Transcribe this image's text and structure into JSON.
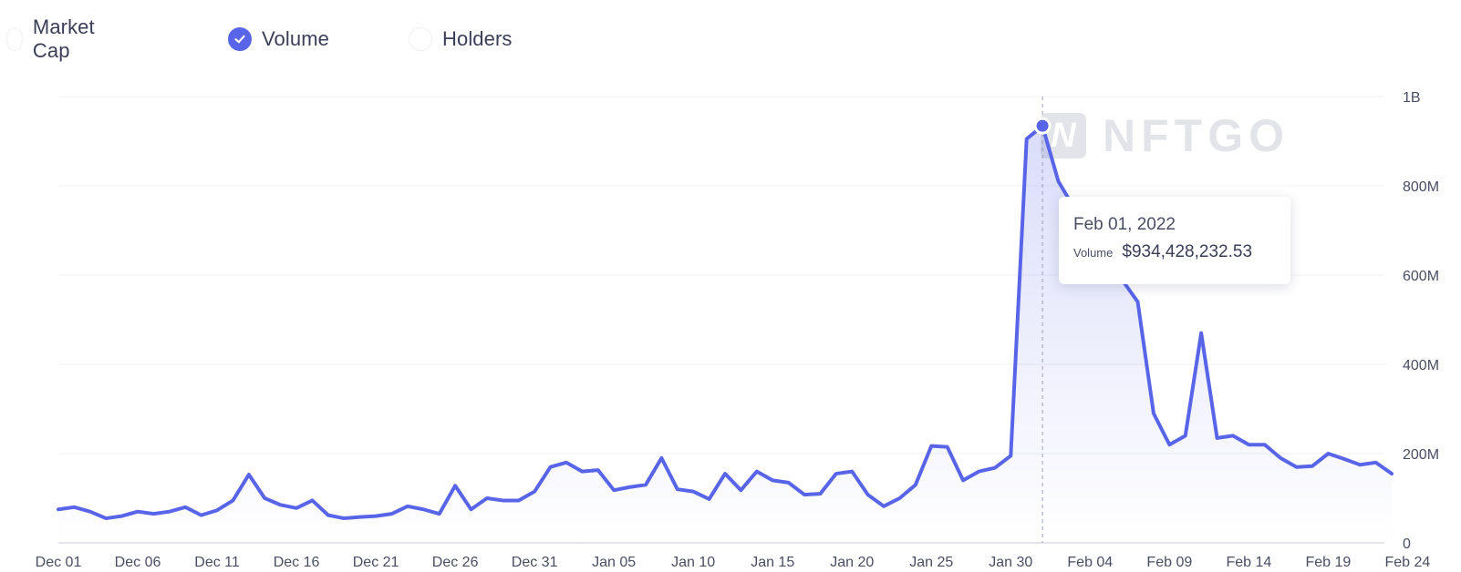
{
  "toggles": [
    {
      "label": "Market Cap",
      "checked": false
    },
    {
      "label": "Volume",
      "checked": true
    },
    {
      "label": "Holders",
      "checked": false
    }
  ],
  "watermark": {
    "mark": "N",
    "text": "NFTGO"
  },
  "tooltip": {
    "date": "Feb 01, 2022",
    "label": "Volume",
    "value": "$934,428,232.53"
  },
  "colors": {
    "line": "#5965e8",
    "grid": "#eef0f4",
    "axis_text": "#4a4e63",
    "crosshair": "#9aa0b1"
  },
  "chart_data": {
    "type": "area",
    "series": [
      {
        "name": "Volume",
        "values": [
          75,
          80,
          70,
          55,
          60,
          70,
          65,
          70,
          80,
          62,
          73,
          95,
          153,
          100,
          85,
          78,
          95,
          62,
          55,
          58,
          60,
          65,
          82,
          75,
          65,
          128,
          75,
          100,
          95,
          95,
          115,
          170,
          180,
          160,
          163,
          118,
          125,
          130,
          190,
          120,
          115,
          98,
          155,
          118,
          160,
          140,
          135,
          108,
          110,
          155,
          160,
          108,
          82,
          100,
          130,
          217,
          215,
          140,
          160,
          168,
          195,
          905,
          934,
          810,
          750,
          700,
          650,
          590,
          540,
          290,
          220,
          240,
          470,
          235,
          240,
          220,
          220,
          190,
          170,
          172,
          200,
          188,
          175,
          180,
          155
        ]
      }
    ],
    "x_start": "2021-12-01",
    "x_end": "2022-02-24",
    "x_tick_labels": [
      "Dec 01",
      "Dec 06",
      "Dec 11",
      "Dec 16",
      "Dec 21",
      "Dec 26",
      "Dec 31",
      "Jan 05",
      "Jan 10",
      "Jan 15",
      "Jan 20",
      "Jan 25",
      "Jan 30",
      "Feb 04",
      "Feb 09",
      "Feb 14",
      "Feb 19",
      "Feb 24"
    ],
    "y_ticks": [
      0,
      200,
      400,
      600,
      800,
      1000
    ],
    "y_tick_labels": [
      "0",
      "200M",
      "400M",
      "600M",
      "800M",
      "1B"
    ],
    "y_unit": "millions USD",
    "ylim": [
      0,
      1000
    ],
    "highlight": {
      "x": "Feb 01, 2022",
      "value": 934.43
    },
    "grid": true,
    "y_axis_side": "right"
  }
}
